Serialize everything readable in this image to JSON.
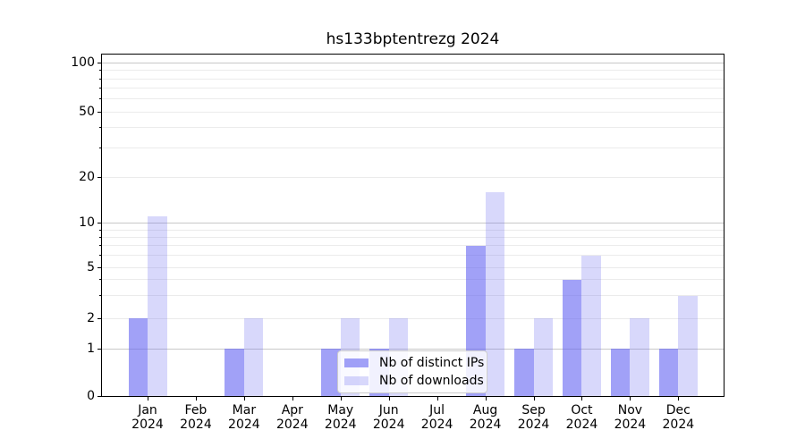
{
  "chart_data": {
    "type": "bar",
    "title": "hs133bptentrezg 2024",
    "months": [
      "Jan",
      "Feb",
      "Mar",
      "Apr",
      "May",
      "Jun",
      "Jul",
      "Aug",
      "Sep",
      "Oct",
      "Nov",
      "Dec"
    ],
    "year_label": "2024",
    "categories": [
      "Jan 2024",
      "Feb 2024",
      "Mar 2024",
      "Apr 2024",
      "May 2024",
      "Jun 2024",
      "Jul 2024",
      "Aug 2024",
      "Sep 2024",
      "Oct 2024",
      "Nov 2024",
      "Dec 2024"
    ],
    "series": [
      {
        "name": "Nb of distinct IPs",
        "color": "rgba(98,98,241,0.6)",
        "values": [
          2,
          0,
          1,
          0,
          1,
          1,
          0,
          7,
          1,
          4,
          1,
          1
        ]
      },
      {
        "name": "Nb of downloads",
        "color": "rgba(98,98,241,0.25)",
        "values": [
          11,
          0,
          2,
          0,
          2,
          2,
          0,
          16,
          2,
          6,
          2,
          3
        ]
      }
    ],
    "yticks": [
      0,
      1,
      2,
      5,
      10,
      20,
      50,
      100
    ],
    "minor_grid_values": [
      2,
      3,
      4,
      5,
      6,
      7,
      8,
      9,
      20,
      30,
      40,
      50,
      60,
      70,
      80,
      90
    ],
    "major_grid_values": [
      1,
      10,
      100
    ],
    "ylim": [
      0,
      100
    ],
    "yscale": "log (with 0 baseline)",
    "grid": "horizontal, major and minor",
    "legend_position": "lower center",
    "xlabel": "",
    "ylabel": ""
  }
}
